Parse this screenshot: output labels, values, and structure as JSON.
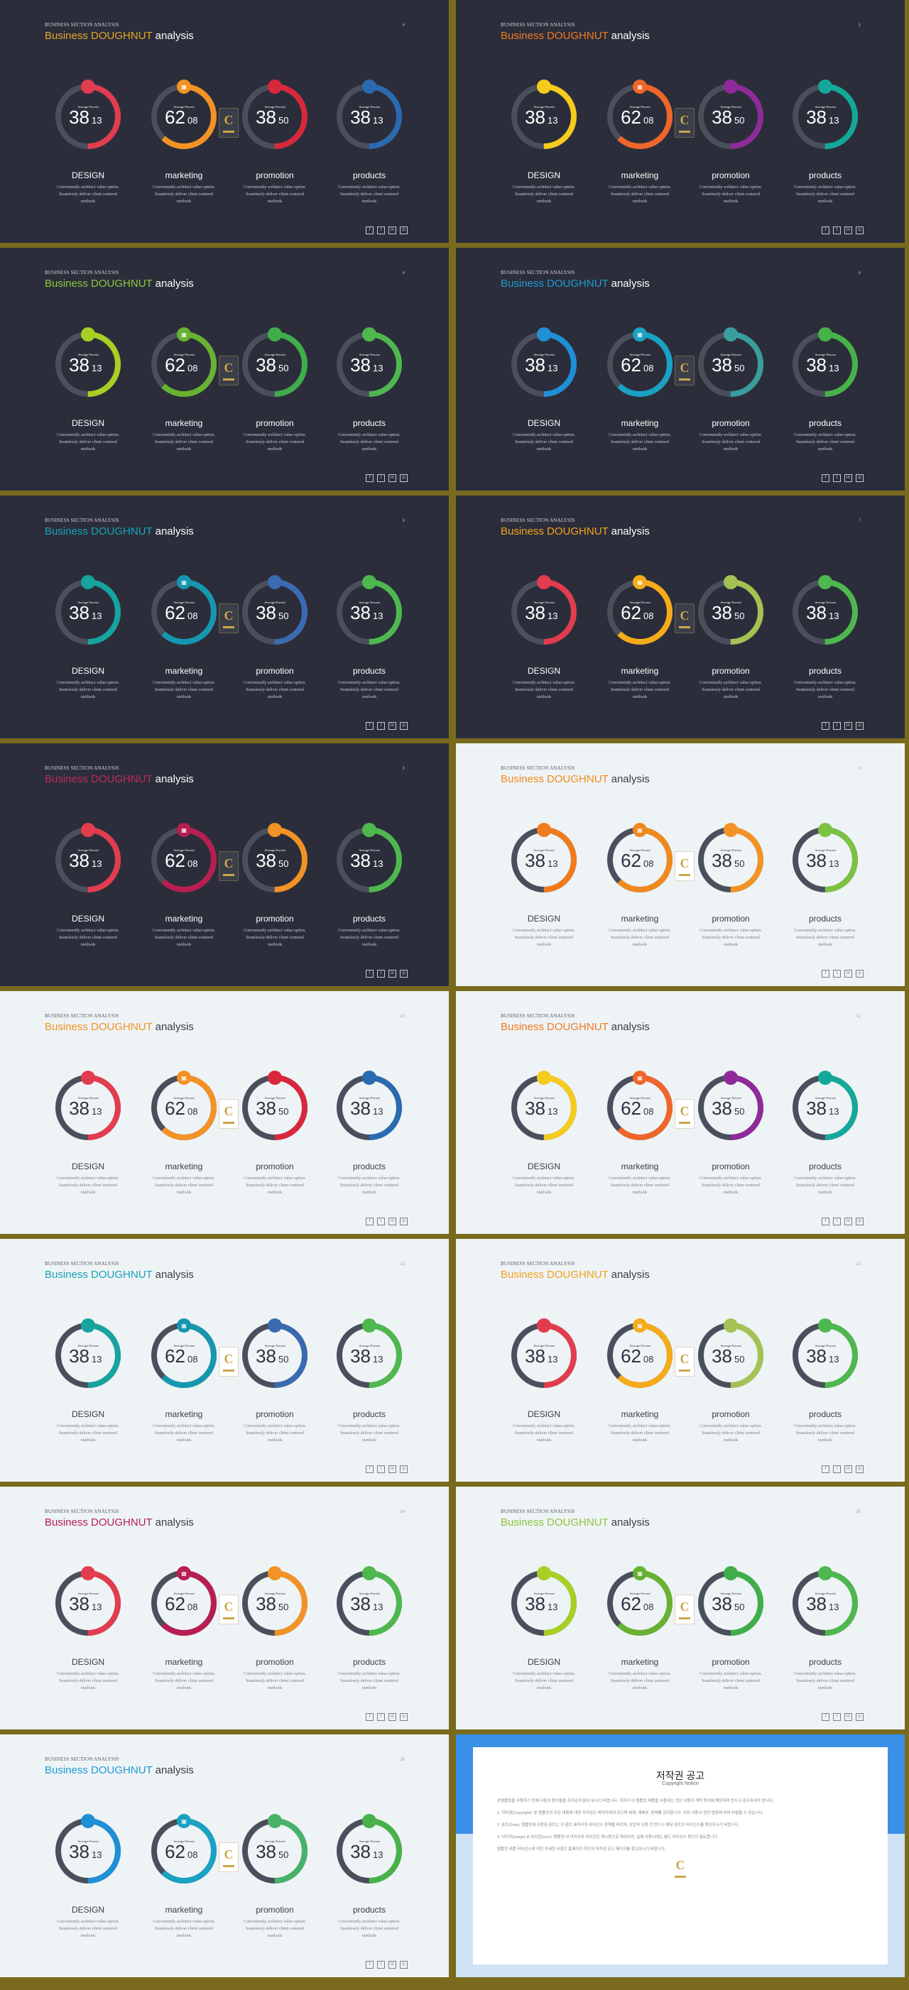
{
  "common": {
    "eyebrow": "BUSINESS SECTION ANALYSIS",
    "title_w1": "Business",
    "title_w2": "DOUGHNUT",
    "title_w3": "analysis",
    "ring_label": "Average Percent",
    "categories": [
      "DESIGN",
      "marketing",
      "promotion",
      "products"
    ],
    "desc_lines": [
      "Conveniently architect value-option.",
      "Seamlessly deliver client centered",
      "methods"
    ],
    "values": [
      {
        "big": "38",
        "small": "13",
        "percent": 0.38
      },
      {
        "big": "62",
        "small": "08",
        "percent": 0.62
      },
      {
        "big": "38",
        "small": "50",
        "percent": 0.38
      },
      {
        "big": "38",
        "small": "13",
        "percent": 0.38
      }
    ],
    "social_icons": [
      "facebook-icon",
      "twitter-icon",
      "linkedin-icon",
      "instagram-icon"
    ],
    "social_glyphs": [
      "f",
      "t",
      "in",
      "◎"
    ],
    "logo_letter": "C"
  },
  "slides": [
    {
      "page": "4",
      "theme": "dark",
      "accent": "#e8a326",
      "colors": [
        "#e23d4e",
        "#f39225",
        "#d8283c",
        "#2a6ab0"
      ]
    },
    {
      "page": "5",
      "theme": "dark",
      "accent": "#f07a22",
      "colors": [
        "#f5cb1c",
        "#f0662a",
        "#8e2a9a",
        "#14a89b"
      ]
    },
    {
      "page": "6",
      "theme": "dark",
      "accent": "#8cc63e",
      "colors": [
        "#a8cf24",
        "#68b232",
        "#3fae4a",
        "#4eb84e"
      ]
    },
    {
      "page": "8",
      "theme": "dark",
      "accent": "#1e9bd7",
      "colors": [
        "#1f8fd6",
        "#1aa1c4",
        "#3a9e9e",
        "#48b24a"
      ]
    },
    {
      "page": "6",
      "theme": "dark",
      "accent": "#17a3b7",
      "colors": [
        "#17a39e",
        "#1796b0",
        "#3a6ab0",
        "#4eb84e"
      ]
    },
    {
      "page": "7",
      "theme": "dark",
      "accent": "#f2a31e",
      "colors": [
        "#e23d4e",
        "#f5ab1a",
        "#a4c254",
        "#4eb84e"
      ]
    },
    {
      "page": "8",
      "theme": "dark",
      "accent": "#c02a5a",
      "colors": [
        "#e23d4e",
        "#b71e52",
        "#f39225",
        "#4eb84e"
      ]
    },
    {
      "page": "9",
      "theme": "light",
      "accent": "#f28a1e",
      "colors": [
        "#f07b1d",
        "#f0891e",
        "#f39225",
        "#7cc242"
      ]
    },
    {
      "page": "10",
      "theme": "light",
      "accent": "#f39225",
      "colors": [
        "#e23d4e",
        "#f39225",
        "#d8283c",
        "#2a6ab0"
      ]
    },
    {
      "page": "11",
      "theme": "light",
      "accent": "#f07a22",
      "colors": [
        "#f5cb1c",
        "#f0662a",
        "#8e2a9a",
        "#14a89b"
      ]
    },
    {
      "page": "12",
      "theme": "light",
      "accent": "#17a3b7",
      "colors": [
        "#17a39e",
        "#1796b0",
        "#3a6ab0",
        "#4eb84e"
      ]
    },
    {
      "page": "13",
      "theme": "light",
      "accent": "#f2a31e",
      "colors": [
        "#e23d4e",
        "#f5ab1a",
        "#a4c254",
        "#4eb84e"
      ]
    },
    {
      "page": "14",
      "theme": "light",
      "accent": "#b71e52",
      "colors": [
        "#e23d4e",
        "#b71e52",
        "#f39225",
        "#4eb84e"
      ]
    },
    {
      "page": "15",
      "theme": "light",
      "accent": "#8cc63e",
      "colors": [
        "#a8cf24",
        "#68b232",
        "#3fae4a",
        "#4eb84e"
      ]
    },
    {
      "page": "16",
      "theme": "light",
      "accent": "#1e9bd7",
      "colors": [
        "#1f8fd6",
        "#1aa1c4",
        "#48b26a",
        "#48b24a"
      ]
    }
  ],
  "copyright": {
    "title": "저작권 공고",
    "subtitle": "Copyright Notice",
    "paragraphs": [
      "본템플릿을 사용하기 전에 다음의 용어들을 주의깊게 읽어 보시기 바랍니다. 귀하가 이 템플릿 제품을 사용하는 것은 사용자 계약 동의에 해당하며 반드시 준수하셔야 합니다.",
      "1. 저작권(Copyright): 본 템플릿의 모든 내용에 대한 저작권은 제작자에게 있으며 복제, 재배포, 판매를 금지합니다. 무단 사용시 관련 법령에 따라 처벌될 수 있습니다.",
      "2. 폰트(Font): 템플릿에 사용된 폰트는 각 폰트 제작사의 라이선스 정책을 따르며, 상업적 이용 전 반드시 해당 폰트의 라이선스를 확인하시기 바랍니다.",
      "3. 이미지(Image) & 아이콘(Icon): 템플릿 내 이미지와 아이콘은 예시용으로 제공되며, 실제 사용시에는 별도 라이선스 확인이 필요합니다.",
      "템플릿 제품 라이선스에 대한 자세한 사항은 홈페이지 하단의 저작권 공고 페이지를 참고하시기 바랍니다."
    ]
  }
}
